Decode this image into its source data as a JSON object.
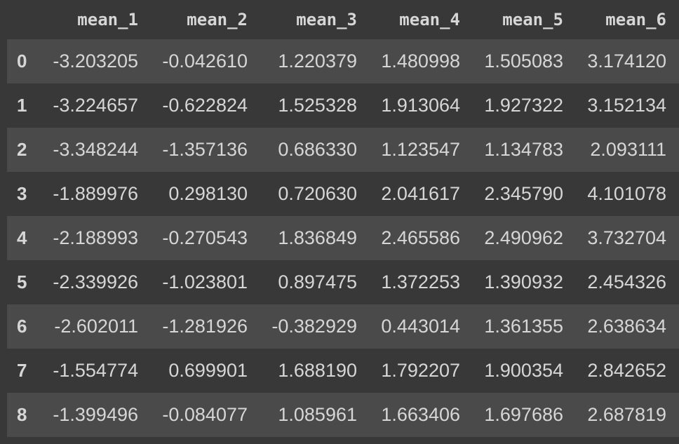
{
  "table": {
    "columns": [
      "",
      "mean_1",
      "mean_2",
      "mean_3",
      "mean_4",
      "mean_5",
      "mean_6"
    ],
    "rows": [
      {
        "index": "0",
        "cells": [
          "-3.203205",
          "-0.042610",
          "1.220379",
          "1.480998",
          "1.505083",
          "3.174120"
        ]
      },
      {
        "index": "1",
        "cells": [
          "-3.224657",
          "-0.622824",
          "1.525328",
          "1.913064",
          "1.927322",
          "3.152134"
        ]
      },
      {
        "index": "2",
        "cells": [
          "-3.348244",
          "-1.357136",
          "0.686330",
          "1.123547",
          "1.134783",
          "2.093111"
        ]
      },
      {
        "index": "3",
        "cells": [
          "-1.889976",
          "0.298130",
          "0.720630",
          "2.041617",
          "2.345790",
          "4.101078"
        ]
      },
      {
        "index": "4",
        "cells": [
          "-2.188993",
          "-0.270543",
          "1.836849",
          "2.465586",
          "2.490962",
          "3.732704"
        ]
      },
      {
        "index": "5",
        "cells": [
          "-2.339926",
          "-1.023801",
          "0.897475",
          "1.372253",
          "1.390932",
          "2.454326"
        ]
      },
      {
        "index": "6",
        "cells": [
          "-2.602011",
          "-1.281926",
          "-0.382929",
          "0.443014",
          "1.361355",
          "2.638634"
        ]
      },
      {
        "index": "7",
        "cells": [
          "-1.554774",
          "0.699901",
          "1.688190",
          "1.792207",
          "1.900354",
          "2.842652"
        ]
      },
      {
        "index": "8",
        "cells": [
          "-1.399496",
          "-0.084077",
          "1.085961",
          "1.663406",
          "1.697686",
          "2.687819"
        ]
      }
    ]
  },
  "colors": {
    "background": "#383838",
    "row_stripe": "#4a4a4a",
    "text": "#d6d6d6"
  }
}
